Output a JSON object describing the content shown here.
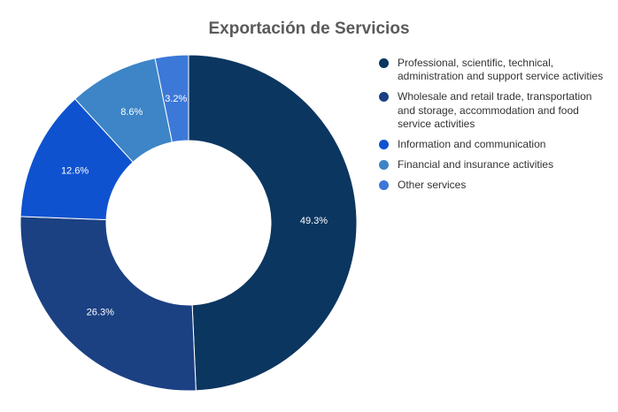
{
  "chart_data": {
    "type": "pie",
    "title": "Exportación de Servicios",
    "donut": true,
    "legend_position": "right",
    "slices": [
      {
        "label": "Professional, scientific, technical, administration and support service activities",
        "value": 49.3,
        "value_label": "49.3%",
        "color": "#0b3660"
      },
      {
        "label": "Wholesale and retail trade, transportation and storage, accommodation and food service activities",
        "value": 26.3,
        "value_label": "26.3%",
        "color": "#1b4183"
      },
      {
        "label": "Information and communication",
        "value": 12.6,
        "value_label": "12.6%",
        "color": "#0f52cf"
      },
      {
        "label": "Financial and insurance activities",
        "value": 8.6,
        "value_label": "8.6%",
        "color": "#3d85c6"
      },
      {
        "label": "Other services",
        "value": 3.2,
        "value_label": "3.2%",
        "color": "#3c78d8"
      }
    ]
  }
}
